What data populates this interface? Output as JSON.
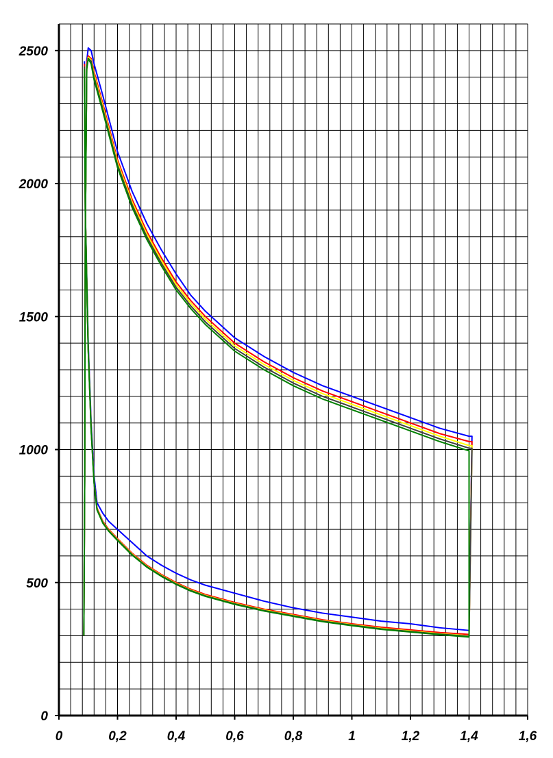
{
  "chart_data": {
    "type": "line",
    "title": "",
    "xlabel": "",
    "ylabel": "",
    "xlim": [
      0,
      1.6
    ],
    "ylim": [
      0,
      2600
    ],
    "x_ticks": [
      0,
      0.2,
      0.4,
      0.6,
      0.8,
      1,
      1.2,
      1.4,
      1.6
    ],
    "x_tick_labels": [
      "0",
      "0,2",
      "0,4",
      "0,6",
      "0,8",
      "1",
      "1,2",
      "1,4",
      "1,6"
    ],
    "y_ticks": [
      0,
      500,
      1000,
      1500,
      2000,
      2500
    ],
    "y_tick_labels": [
      "0",
      "500",
      "1000",
      "1500",
      "2000",
      "2500"
    ],
    "grid": true,
    "x_grid_step": 0.04,
    "y_grid_step": 100,
    "colors": {
      "grid": "#000000",
      "background": "#ffffff"
    },
    "series": [
      {
        "color": "#0000ff",
        "points": [
          [
            0.085,
            300
          ],
          [
            0.088,
            900
          ],
          [
            0.09,
            1800
          ],
          [
            0.095,
            2460
          ],
          [
            0.1,
            2510
          ],
          [
            0.11,
            2500
          ],
          [
            0.12,
            2450
          ],
          [
            0.15,
            2330
          ],
          [
            0.2,
            2120
          ],
          [
            0.25,
            1970
          ],
          [
            0.3,
            1850
          ],
          [
            0.35,
            1750
          ],
          [
            0.4,
            1660
          ],
          [
            0.45,
            1580
          ],
          [
            0.5,
            1520
          ],
          [
            0.6,
            1420
          ],
          [
            0.7,
            1350
          ],
          [
            0.8,
            1290
          ],
          [
            0.9,
            1240
          ],
          [
            1.0,
            1200
          ],
          [
            1.1,
            1160
          ],
          [
            1.2,
            1120
          ],
          [
            1.3,
            1080
          ],
          [
            1.4,
            1050
          ],
          [
            1.41,
            1050
          ],
          [
            1.4,
            320
          ],
          [
            1.3,
            330
          ],
          [
            1.2,
            345
          ],
          [
            1.1,
            355
          ],
          [
            1.0,
            370
          ],
          [
            0.9,
            385
          ],
          [
            0.8,
            405
          ],
          [
            0.7,
            430
          ],
          [
            0.6,
            460
          ],
          [
            0.5,
            490
          ],
          [
            0.45,
            510
          ],
          [
            0.4,
            535
          ],
          [
            0.35,
            565
          ],
          [
            0.3,
            600
          ],
          [
            0.25,
            650
          ],
          [
            0.2,
            700
          ],
          [
            0.17,
            730
          ],
          [
            0.15,
            760
          ],
          [
            0.13,
            800
          ],
          [
            0.12,
            900
          ],
          [
            0.11,
            1100
          ],
          [
            0.1,
            1400
          ],
          [
            0.09,
            1900
          ],
          [
            0.087,
            2460
          ]
        ]
      },
      {
        "color": "#ff0000",
        "points": [
          [
            0.085,
            300
          ],
          [
            0.088,
            900
          ],
          [
            0.09,
            1800
          ],
          [
            0.095,
            2450
          ],
          [
            0.1,
            2480
          ],
          [
            0.11,
            2470
          ],
          [
            0.12,
            2420
          ],
          [
            0.15,
            2300
          ],
          [
            0.2,
            2090
          ],
          [
            0.25,
            1940
          ],
          [
            0.3,
            1820
          ],
          [
            0.35,
            1720
          ],
          [
            0.4,
            1630
          ],
          [
            0.45,
            1560
          ],
          [
            0.5,
            1500
          ],
          [
            0.6,
            1400
          ],
          [
            0.7,
            1330
          ],
          [
            0.8,
            1270
          ],
          [
            0.9,
            1220
          ],
          [
            1.0,
            1180
          ],
          [
            1.1,
            1140
          ],
          [
            1.2,
            1100
          ],
          [
            1.3,
            1060
          ],
          [
            1.4,
            1030
          ],
          [
            1.41,
            1030
          ],
          [
            1.4,
            305
          ],
          [
            1.3,
            312
          ],
          [
            1.2,
            322
          ],
          [
            1.1,
            332
          ],
          [
            1.0,
            345
          ],
          [
            0.9,
            360
          ],
          [
            0.8,
            380
          ],
          [
            0.7,
            400
          ],
          [
            0.6,
            425
          ],
          [
            0.5,
            455
          ],
          [
            0.45,
            475
          ],
          [
            0.4,
            500
          ],
          [
            0.35,
            530
          ],
          [
            0.3,
            565
          ],
          [
            0.25,
            610
          ],
          [
            0.2,
            665
          ],
          [
            0.17,
            700
          ],
          [
            0.15,
            730
          ],
          [
            0.13,
            780
          ],
          [
            0.12,
            880
          ],
          [
            0.11,
            1080
          ],
          [
            0.1,
            1380
          ],
          [
            0.09,
            1900
          ],
          [
            0.087,
            2450
          ]
        ]
      },
      {
        "color": "#ffff00",
        "points": [
          [
            0.085,
            300
          ],
          [
            0.088,
            900
          ],
          [
            0.09,
            1800
          ],
          [
            0.095,
            2440
          ],
          [
            0.1,
            2475
          ],
          [
            0.11,
            2465
          ],
          [
            0.12,
            2410
          ],
          [
            0.15,
            2290
          ],
          [
            0.2,
            2080
          ],
          [
            0.25,
            1930
          ],
          [
            0.3,
            1810
          ],
          [
            0.35,
            1710
          ],
          [
            0.4,
            1620
          ],
          [
            0.45,
            1550
          ],
          [
            0.5,
            1490
          ],
          [
            0.6,
            1390
          ],
          [
            0.7,
            1320
          ],
          [
            0.8,
            1260
          ],
          [
            0.9,
            1210
          ],
          [
            1.0,
            1170
          ],
          [
            1.1,
            1130
          ],
          [
            1.2,
            1090
          ],
          [
            1.3,
            1050
          ],
          [
            1.4,
            1015
          ],
          [
            1.41,
            1015
          ],
          [
            1.4,
            300
          ],
          [
            1.3,
            308
          ],
          [
            1.2,
            318
          ],
          [
            1.1,
            328
          ],
          [
            1.0,
            342
          ],
          [
            0.9,
            357
          ],
          [
            0.8,
            377
          ],
          [
            0.7,
            397
          ],
          [
            0.6,
            422
          ],
          [
            0.5,
            452
          ],
          [
            0.45,
            472
          ],
          [
            0.4,
            497
          ],
          [
            0.35,
            527
          ],
          [
            0.3,
            562
          ],
          [
            0.25,
            607
          ],
          [
            0.2,
            662
          ],
          [
            0.17,
            697
          ],
          [
            0.15,
            727
          ],
          [
            0.13,
            777
          ],
          [
            0.12,
            877
          ],
          [
            0.11,
            1077
          ],
          [
            0.1,
            1377
          ],
          [
            0.09,
            1897
          ],
          [
            0.087,
            2440
          ]
        ]
      },
      {
        "color": "#404040",
        "points": [
          [
            0.085,
            300
          ],
          [
            0.088,
            900
          ],
          [
            0.09,
            1800
          ],
          [
            0.095,
            2440
          ],
          [
            0.1,
            2470
          ],
          [
            0.11,
            2460
          ],
          [
            0.12,
            2400
          ],
          [
            0.15,
            2280
          ],
          [
            0.2,
            2070
          ],
          [
            0.25,
            1920
          ],
          [
            0.3,
            1800
          ],
          [
            0.35,
            1700
          ],
          [
            0.4,
            1610
          ],
          [
            0.45,
            1540
          ],
          [
            0.5,
            1480
          ],
          [
            0.6,
            1380
          ],
          [
            0.7,
            1310
          ],
          [
            0.8,
            1250
          ],
          [
            0.9,
            1200
          ],
          [
            1.0,
            1160
          ],
          [
            1.1,
            1120
          ],
          [
            1.2,
            1080
          ],
          [
            1.3,
            1040
          ],
          [
            1.4,
            1005
          ],
          [
            1.41,
            1005
          ],
          [
            1.4,
            298
          ],
          [
            1.3,
            306
          ],
          [
            1.2,
            316
          ],
          [
            1.1,
            326
          ],
          [
            1.0,
            340
          ],
          [
            0.9,
            355
          ],
          [
            0.8,
            375
          ],
          [
            0.7,
            395
          ],
          [
            0.6,
            420
          ],
          [
            0.5,
            450
          ],
          [
            0.45,
            470
          ],
          [
            0.4,
            495
          ],
          [
            0.35,
            525
          ],
          [
            0.3,
            560
          ],
          [
            0.25,
            605
          ],
          [
            0.2,
            660
          ],
          [
            0.17,
            695
          ],
          [
            0.15,
            725
          ],
          [
            0.13,
            775
          ],
          [
            0.12,
            875
          ],
          [
            0.11,
            1075
          ],
          [
            0.1,
            1375
          ],
          [
            0.09,
            1895
          ],
          [
            0.087,
            2440
          ]
        ]
      },
      {
        "color": "#008000",
        "points": [
          [
            0.085,
            300
          ],
          [
            0.088,
            900
          ],
          [
            0.09,
            1800
          ],
          [
            0.095,
            2430
          ],
          [
            0.1,
            2470
          ],
          [
            0.11,
            2450
          ],
          [
            0.12,
            2390
          ],
          [
            0.15,
            2270
          ],
          [
            0.2,
            2060
          ],
          [
            0.25,
            1910
          ],
          [
            0.3,
            1790
          ],
          [
            0.35,
            1690
          ],
          [
            0.4,
            1600
          ],
          [
            0.45,
            1530
          ],
          [
            0.5,
            1470
          ],
          [
            0.6,
            1370
          ],
          [
            0.7,
            1300
          ],
          [
            0.8,
            1240
          ],
          [
            0.9,
            1190
          ],
          [
            1.0,
            1150
          ],
          [
            1.1,
            1110
          ],
          [
            1.2,
            1070
          ],
          [
            1.3,
            1030
          ],
          [
            1.4,
            995
          ],
          [
            1.4,
            295
          ],
          [
            1.3,
            304
          ],
          [
            1.2,
            314
          ],
          [
            1.1,
            324
          ],
          [
            1.0,
            338
          ],
          [
            0.9,
            353
          ],
          [
            0.8,
            373
          ],
          [
            0.7,
            393
          ],
          [
            0.6,
            418
          ],
          [
            0.5,
            448
          ],
          [
            0.45,
            468
          ],
          [
            0.4,
            493
          ],
          [
            0.35,
            523
          ],
          [
            0.3,
            558
          ],
          [
            0.25,
            603
          ],
          [
            0.2,
            658
          ],
          [
            0.17,
            693
          ],
          [
            0.15,
            723
          ],
          [
            0.13,
            773
          ],
          [
            0.12,
            873
          ],
          [
            0.11,
            1073
          ],
          [
            0.1,
            1373
          ],
          [
            0.09,
            1893
          ],
          [
            0.087,
            2430
          ]
        ]
      }
    ]
  }
}
